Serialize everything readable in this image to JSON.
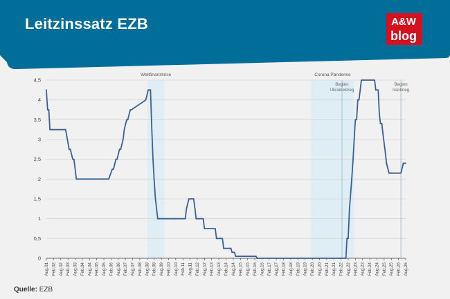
{
  "header": {
    "title": "Leitzinssatz EZB",
    "logo_line1": "A&W",
    "logo_line2": "blog",
    "bar_color": "#006e99",
    "logo_color": "#d3111f"
  },
  "footer": {
    "source_label": "Quelle:",
    "source_value": "EZB"
  },
  "chart_data": {
    "type": "line",
    "title": "",
    "xlabel": "",
    "ylabel": "",
    "ylim": [
      0,
      4.5
    ],
    "yticks": [
      0,
      0.5,
      1,
      1.5,
      2,
      2.5,
      3,
      3.5,
      4,
      4.5
    ],
    "ytick_labels": [
      "0",
      "0,5",
      "1",
      "1,5",
      "2",
      "2,5",
      "3",
      "3,5",
      "4",
      "4,5"
    ],
    "xlim": [
      2001.583,
      2026.583
    ],
    "grid": true,
    "line_color": "#3a5f94",
    "xtick_labels": [
      "Aug.01",
      "Feb.02",
      "Aug.02",
      "Feb.03",
      "Aug.03",
      "Feb.04",
      "Aug.04",
      "Feb.05",
      "Aug.05",
      "Feb.06",
      "Aug.06",
      "Feb.07",
      "Aug.07",
      "Feb.08",
      "Aug.08",
      "Feb.09",
      "Aug.09",
      "Feb.10",
      "Aug.10",
      "Feb.11",
      "Aug.11",
      "Feb.12",
      "Aug.12",
      "Feb.13",
      "Aug.13",
      "Feb.14",
      "Aug.14",
      "Feb.15",
      "Aug.15",
      "Feb.16",
      "Aug.16",
      "Feb.17",
      "Aug.17",
      "Feb.18",
      "Aug.18",
      "Feb.19",
      "Aug.19",
      "Feb.20",
      "Aug.20",
      "Feb.21",
      "Aug.21",
      "Feb.22",
      "Aug.22",
      "Feb.23",
      "Aug.23",
      "Feb.24",
      "Aug.24",
      "Feb.25",
      "Aug.25",
      "Feb.26",
      "Aug.26"
    ],
    "regions": [
      {
        "label": "Weltfinanzkrise",
        "from": 2008.6,
        "to": 2009.8
      },
      {
        "label": "Corona Pandemie",
        "from": 2020.0,
        "to": 2023.0
      }
    ],
    "markers": [
      {
        "label_lines": [
          "Beginn",
          "Ukrainekrieg"
        ],
        "x": 2022.15
      },
      {
        "label_lines": [
          "Beginn",
          "Irankrieg"
        ],
        "x": 2026.25
      }
    ],
    "series": [
      {
        "x": [
          2001.58,
          2001.67,
          2001.75,
          2001.83,
          2002.0,
          2002.5,
          2002.92,
          2003.17,
          2003.25,
          2003.42,
          2003.5,
          2003.67,
          2004.5,
          2005.5,
          2005.92,
          2006.17,
          2006.25,
          2006.42,
          2006.5,
          2006.67,
          2006.75,
          2006.92,
          2007.0,
          2007.17,
          2007.25,
          2007.42,
          2007.5,
          2008.5,
          2008.67,
          2008.83,
          2008.92,
          2009.0,
          2009.08,
          2009.17,
          2009.33,
          2009.5,
          2010.5,
          2011.25,
          2011.33,
          2011.5,
          2011.83,
          2011.92,
          2012.0,
          2012.5,
          2012.58,
          2013.33,
          2013.42,
          2013.83,
          2013.92,
          2014.42,
          2014.5,
          2014.67,
          2014.75,
          2015.5,
          2016.17,
          2016.25,
          2018.5,
          2020.5,
          2022.42,
          2022.5,
          2022.58,
          2022.67,
          2022.83,
          2022.92,
          2023.0,
          2023.08,
          2023.17,
          2023.25,
          2023.33,
          2023.42,
          2023.5,
          2023.67,
          2024.42,
          2024.5,
          2024.67,
          2024.75,
          2024.83,
          2024.92,
          2025.0,
          2025.17,
          2025.25,
          2025.42,
          2025.5,
          2025.67,
          2026.0,
          2026.25,
          2026.42,
          2026.58
        ],
        "values": [
          4.25,
          3.75,
          3.75,
          3.25,
          3.25,
          3.25,
          3.25,
          2.75,
          2.75,
          2.5,
          2.5,
          2.0,
          2.0,
          2.0,
          2.0,
          2.25,
          2.25,
          2.5,
          2.5,
          2.75,
          2.75,
          3.0,
          3.25,
          3.5,
          3.5,
          3.75,
          3.75,
          4.0,
          4.25,
          4.25,
          3.25,
          2.5,
          2.0,
          1.5,
          1.0,
          1.0,
          1.0,
          1.0,
          1.25,
          1.5,
          1.5,
          1.25,
          1.0,
          1.0,
          0.75,
          0.75,
          0.5,
          0.5,
          0.25,
          0.25,
          0.15,
          0.15,
          0.05,
          0.05,
          0.05,
          0.0,
          0.0,
          0.0,
          0.0,
          0.5,
          0.5,
          1.25,
          2.0,
          2.5,
          3.0,
          3.5,
          3.5,
          4.0,
          4.0,
          4.25,
          4.5,
          4.5,
          4.5,
          4.25,
          4.25,
          3.65,
          3.4,
          3.4,
          3.15,
          2.65,
          2.4,
          2.15,
          2.15,
          2.15,
          2.15,
          2.15,
          2.4,
          2.4
        ]
      }
    ]
  }
}
